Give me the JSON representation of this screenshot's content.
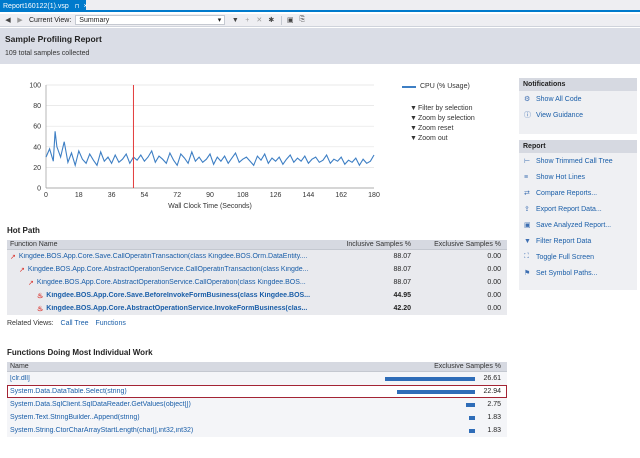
{
  "tab": {
    "title": "Report160122(1).vsp",
    "pin": "⊓",
    "close": "×"
  },
  "toolbar": {
    "current_view_label": "Current View:",
    "current_view_value": "Summary"
  },
  "header": {
    "title": "Sample Profiling Report",
    "subtitle": "109 total samples collected"
  },
  "chart_data": {
    "type": "line",
    "xlabel": "Wall Clock Time (Seconds)",
    "ylabel": "",
    "ylim": [
      0,
      100
    ],
    "xlim": [
      0,
      180
    ],
    "xticks": [
      0,
      18,
      36,
      54,
      72,
      90,
      108,
      126,
      144,
      162,
      180
    ],
    "yticks": [
      0,
      20,
      40,
      60,
      80,
      100
    ],
    "grid": true,
    "legend": "top-right",
    "marker_x": 48,
    "series": [
      {
        "name": "CPU (% Usage)",
        "color": "#3e7fc4",
        "x": [
          0,
          2,
          4,
          5,
          6,
          8,
          10,
          12,
          14,
          16,
          18,
          20,
          22,
          24,
          26,
          28,
          30,
          32,
          34,
          36,
          38,
          40,
          42,
          44,
          46,
          48,
          50,
          52,
          54,
          56,
          58,
          60,
          62,
          64,
          66,
          68,
          70,
          72,
          74,
          76,
          78,
          80,
          82,
          84,
          86,
          88,
          90,
          92,
          94,
          96,
          98,
          100,
          102,
          104,
          106,
          108,
          110,
          112,
          114,
          116,
          118,
          120,
          122,
          124,
          126,
          128,
          130,
          132,
          134,
          136,
          138,
          140,
          142,
          144,
          146,
          148,
          150,
          152,
          154,
          156,
          158,
          160,
          162,
          164,
          166,
          168,
          170,
          172,
          174,
          176,
          178,
          180
        ],
        "y": [
          30,
          38,
          26,
          55,
          40,
          30,
          45,
          25,
          34,
          22,
          36,
          28,
          24,
          33,
          27,
          22,
          35,
          26,
          30,
          24,
          32,
          25,
          28,
          33,
          24,
          30,
          27,
          32,
          26,
          30,
          36,
          25,
          31,
          28,
          24,
          34,
          27,
          22,
          33,
          29,
          24,
          35,
          26,
          30,
          25,
          28,
          33,
          23,
          30,
          26,
          31,
          24,
          29,
          34,
          25,
          28,
          30,
          26,
          22,
          31,
          27,
          33,
          24,
          29,
          26,
          30,
          23,
          28,
          32,
          25,
          29,
          26,
          31,
          24,
          28,
          30,
          25,
          27,
          32,
          24,
          28,
          26,
          30,
          23,
          27,
          25,
          29,
          22,
          28,
          24,
          26,
          32
        ]
      }
    ]
  },
  "chart_options": [
    {
      "icon": "filter-icon",
      "label": "Filter by selection"
    },
    {
      "icon": "filter-icon",
      "label": "Zoom by selection"
    },
    {
      "icon": "filter-icon",
      "label": "Zoom reset"
    },
    {
      "icon": "filter-icon",
      "label": "Zoom out"
    }
  ],
  "notifications": {
    "title": "Notifications",
    "items": [
      {
        "label": "Show All Code",
        "icon": "code-icon"
      },
      {
        "label": "View Guidance",
        "icon": "info-icon"
      }
    ]
  },
  "report_panel": {
    "title": "Report",
    "items": [
      {
        "label": "Show Trimmed Call Tree",
        "icon": "tree-icon"
      },
      {
        "label": "Show Hot Lines",
        "icon": "hot-lines-icon"
      },
      {
        "label": "Compare Reports...",
        "icon": "compare-icon"
      },
      {
        "label": "Export Report Data...",
        "icon": "export-icon"
      },
      {
        "label": "Save Analyzed Report...",
        "icon": "save-icon"
      },
      {
        "label": "Filter Report Data",
        "icon": "filter-icon"
      },
      {
        "label": "Toggle Full Screen",
        "icon": "fullscreen-icon"
      },
      {
        "label": "Set Symbol Paths...",
        "icon": "symbol-icon"
      }
    ]
  },
  "hot_path": {
    "title": "Hot Path",
    "headers": {
      "name": "Function Name",
      "inclusive": "Inclusive Samples %",
      "exclusive": "Exclusive Samples %"
    },
    "rows": [
      {
        "name": "Kingdee.BOS.App.Core.Save.CallOperatinTransaction(class Kingdee.BOS.Orm.DataEntity....",
        "inclusive": "88.07",
        "exclusive": "0.00",
        "bold": false
      },
      {
        "name": "Kingdee.BOS.App.Core.AbstractOperationService.CallOperatinTransaction(class Kingde...",
        "inclusive": "88.07",
        "exclusive": "0.00",
        "bold": false
      },
      {
        "name": "Kingdee.BOS.App.Core.AbstractOperationService.CallOperation(class Kingdee.BOS...",
        "inclusive": "88.07",
        "exclusive": "0.00",
        "bold": false
      },
      {
        "name": "Kingdee.BOS.App.Core.Save.BeforeInvokeFormBusiness(class Kingdee.BOS...",
        "inclusive": "44.95",
        "exclusive": "0.00",
        "bold": true
      },
      {
        "name": "Kingdee.BOS.App.Core.AbstractOperationService.InvokeFormBusiness(clas...",
        "inclusive": "42.20",
        "exclusive": "0.00",
        "bold": true
      }
    ]
  },
  "related_views": {
    "label": "Related Views:",
    "call_tree": "Call Tree",
    "functions": "Functions"
  },
  "functions_work": {
    "title": "Functions Doing Most Individual Work",
    "headers": {
      "name": "Name",
      "exclusive": "Exclusive Samples %"
    },
    "rows": [
      {
        "name": "[clr.dll]",
        "value": "26.61",
        "fraction": 0.2661
      },
      {
        "name": "System.Data.DataTable.Select(string)",
        "value": "22.94",
        "fraction": 0.2294
      },
      {
        "name": "System.Data.SqlClient.SqlDataReader.GetValues(object[])",
        "value": "2.75",
        "fraction": 0.0275
      },
      {
        "name": "System.Text.StringBuilder..Append(string)",
        "value": "1.83",
        "fraction": 0.0183
      },
      {
        "name": "System.String.CtorCharArrayStartLength(char[],int32,int32)",
        "value": "1.83",
        "fraction": 0.0183
      }
    ]
  }
}
